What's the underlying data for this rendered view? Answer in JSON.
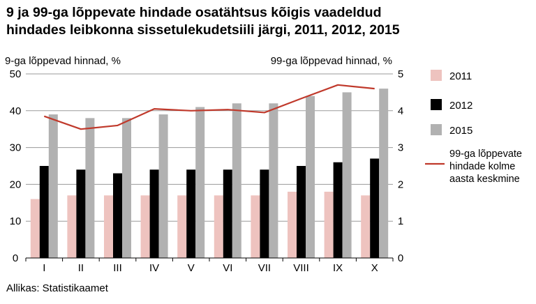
{
  "title_lines": [
    "9 ja 99-ga lõppevate hindade osatähtsus kõigis vaadeldud",
    "hindades leibkonna sissetulekudetsiili järgi, 2011, 2012, 2015"
  ],
  "source": "Allikas: Statistikaamet",
  "colors": {
    "2011": "#eec3bf",
    "2012": "#000000",
    "2015": "#b1b1b1",
    "line": "#c0392b"
  },
  "chart_data": {
    "type": "bar",
    "categories": [
      "I",
      "II",
      "III",
      "IV",
      "V",
      "VI",
      "VII",
      "VIII",
      "IX",
      "X"
    ],
    "series": [
      {
        "name": "2011",
        "values": [
          16,
          17,
          17,
          17,
          17,
          17,
          17,
          18,
          18,
          17
        ]
      },
      {
        "name": "2012",
        "values": [
          25,
          24,
          23,
          24,
          24,
          24,
          24,
          25,
          26,
          27
        ]
      },
      {
        "name": "2015",
        "values": [
          39,
          38,
          38,
          39,
          41,
          42,
          42,
          44,
          45,
          46
        ]
      }
    ],
    "line_series": {
      "name": "99-ga lõppevate hindade kolme aasta keskmine",
      "axis": "right",
      "values": [
        3.85,
        3.5,
        3.6,
        4.05,
        4.0,
        4.03,
        3.95,
        4.33,
        4.7,
        4.6
      ]
    },
    "left_axis": {
      "label": "9-ga lõppevad hinnad, %",
      "ylim": [
        0,
        50
      ],
      "ticks": [
        0,
        10,
        20,
        30,
        40,
        50
      ]
    },
    "right_axis": {
      "label": "99-ga lõppevad hinnad, %",
      "ylim": [
        0,
        5
      ],
      "ticks": [
        0,
        1,
        2,
        3,
        4,
        5
      ]
    },
    "gridlines": true,
    "legend": {
      "position": "right",
      "entries": [
        {
          "key": "2011",
          "label": "2011"
        },
        {
          "key": "2012",
          "label": "2012"
        },
        {
          "key": "2015",
          "label": "2015"
        },
        {
          "key": "line",
          "lines": [
            "99-ga lõppevate",
            "hindade kolme",
            "aasta keskmine"
          ]
        }
      ]
    }
  }
}
